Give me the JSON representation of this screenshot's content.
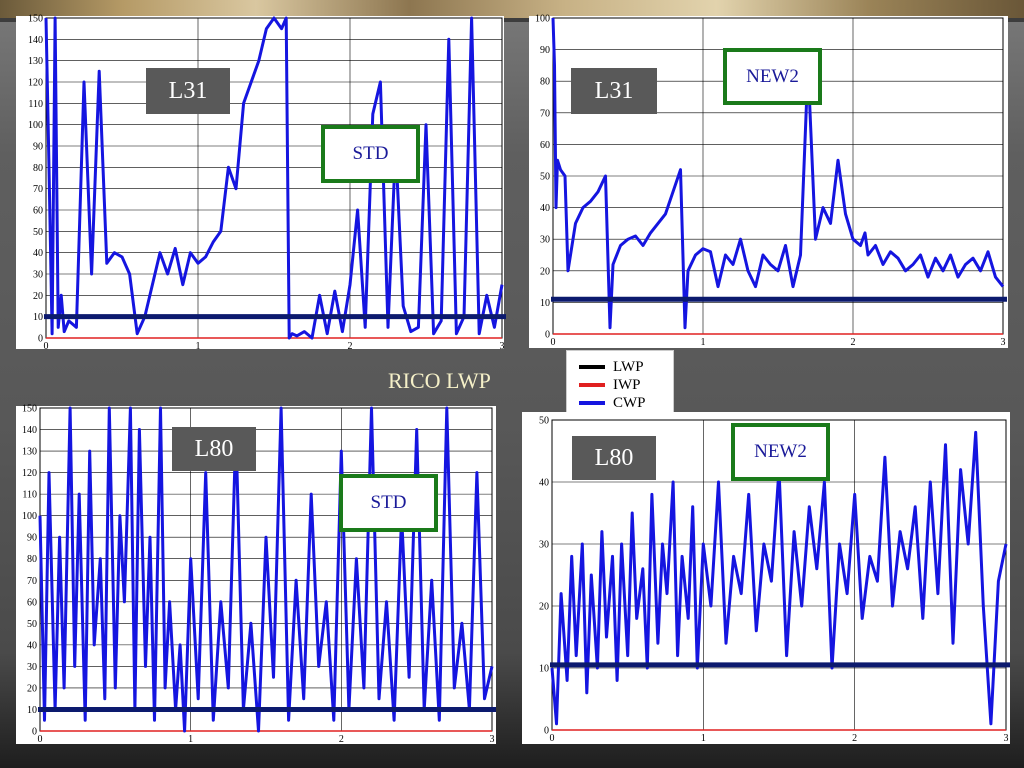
{
  "title": "RICO LWP",
  "legend": [
    {
      "label": "LWP",
      "color": "#000000"
    },
    {
      "label": "IWP",
      "color": "#e02020"
    },
    {
      "label": "CWP",
      "color": "#1515e0"
    }
  ],
  "chart_data": [
    {
      "type": "line",
      "id": "l31-std",
      "tag": "L31",
      "scheme": "STD",
      "xlim": [
        0,
        3
      ],
      "ylim": [
        0,
        150
      ],
      "xticks": [
        0,
        1,
        2,
        3
      ],
      "yticks": [
        0,
        10,
        20,
        30,
        40,
        50,
        60,
        70,
        80,
        90,
        100,
        110,
        120,
        130,
        140,
        150
      ],
      "grid": true,
      "lwp": 10,
      "iwp": 0,
      "series": [
        {
          "name": "CWP",
          "x": [
            0,
            0.02,
            0.04,
            0.06,
            0.08,
            0.1,
            0.12,
            0.15,
            0.2,
            0.25,
            0.3,
            0.35,
            0.4,
            0.45,
            0.5,
            0.55,
            0.6,
            0.65,
            0.7,
            0.75,
            0.8,
            0.85,
            0.9,
            0.95,
            1.0,
            1.05,
            1.1,
            1.15,
            1.2,
            1.25,
            1.3,
            1.35,
            1.4,
            1.45,
            1.5,
            1.55,
            1.58,
            1.6,
            1.62,
            1.65,
            1.7,
            1.75,
            1.8,
            1.85,
            1.9,
            1.95,
            2.0,
            2.05,
            2.1,
            2.15,
            2.2,
            2.25,
            2.3,
            2.35,
            2.4,
            2.45,
            2.5,
            2.55,
            2.6,
            2.65,
            2.7,
            2.75,
            2.8,
            2.85,
            2.9,
            2.95,
            3.0
          ],
          "y": [
            150,
            80,
            2,
            150,
            5,
            20,
            3,
            8,
            5,
            120,
            30,
            125,
            35,
            40,
            38,
            30,
            2,
            10,
            25,
            40,
            30,
            42,
            25,
            40,
            35,
            38,
            45,
            50,
            80,
            70,
            110,
            120,
            130,
            145,
            150,
            145,
            150,
            0,
            2,
            1,
            3,
            0,
            20,
            2,
            22,
            3,
            25,
            60,
            5,
            105,
            120,
            5,
            90,
            15,
            3,
            5,
            100,
            2,
            8,
            140,
            2,
            10,
            150,
            2,
            20,
            5,
            25
          ]
        }
      ]
    },
    {
      "type": "line",
      "id": "l31-new2",
      "tag": "L31",
      "scheme": "NEW2",
      "xlim": [
        0,
        3
      ],
      "ylim": [
        0,
        100
      ],
      "xticks": [
        0,
        1,
        2,
        3
      ],
      "yticks": [
        0,
        10,
        20,
        30,
        40,
        50,
        60,
        70,
        80,
        90,
        100
      ],
      "grid": true,
      "lwp": 11,
      "iwp": 0,
      "series": [
        {
          "name": "CWP",
          "x": [
            0,
            0.01,
            0.02,
            0.03,
            0.05,
            0.08,
            0.1,
            0.15,
            0.2,
            0.25,
            0.3,
            0.35,
            0.38,
            0.4,
            0.45,
            0.5,
            0.55,
            0.6,
            0.65,
            0.7,
            0.75,
            0.8,
            0.85,
            0.88,
            0.9,
            0.95,
            1.0,
            1.05,
            1.1,
            1.15,
            1.2,
            1.25,
            1.3,
            1.35,
            1.4,
            1.45,
            1.5,
            1.55,
            1.6,
            1.65,
            1.7,
            1.75,
            1.8,
            1.85,
            1.9,
            1.95,
            2.0,
            2.05,
            2.08,
            2.1,
            2.15,
            2.2,
            2.25,
            2.3,
            2.35,
            2.4,
            2.45,
            2.5,
            2.55,
            2.6,
            2.65,
            2.7,
            2.75,
            2.8,
            2.85,
            2.9,
            2.95,
            3.0
          ],
          "y": [
            100,
            85,
            40,
            55,
            52,
            50,
            20,
            35,
            40,
            42,
            45,
            50,
            2,
            22,
            28,
            30,
            31,
            28,
            32,
            35,
            38,
            45,
            52,
            2,
            20,
            25,
            27,
            26,
            15,
            25,
            22,
            30,
            20,
            15,
            25,
            22,
            20,
            28,
            15,
            25,
            85,
            30,
            40,
            35,
            55,
            38,
            30,
            28,
            32,
            25,
            28,
            22,
            26,
            24,
            20,
            22,
            25,
            18,
            24,
            20,
            25,
            18,
            22,
            24,
            20,
            26,
            18,
            15
          ]
        }
      ]
    },
    {
      "type": "line",
      "id": "l80-std",
      "tag": "L80",
      "scheme": "STD",
      "xlim": [
        0,
        3
      ],
      "ylim": [
        0,
        150
      ],
      "xticks": [
        0,
        1,
        2,
        3
      ],
      "yticks": [
        0,
        10,
        20,
        30,
        40,
        50,
        60,
        70,
        80,
        90,
        100,
        110,
        120,
        130,
        140,
        150
      ],
      "grid": true,
      "lwp": 10,
      "iwp": 0,
      "series": [
        {
          "name": "CWP",
          "x": [
            0,
            0.03,
            0.06,
            0.1,
            0.13,
            0.16,
            0.2,
            0.23,
            0.26,
            0.3,
            0.33,
            0.36,
            0.4,
            0.43,
            0.46,
            0.5,
            0.53,
            0.56,
            0.6,
            0.63,
            0.66,
            0.7,
            0.73,
            0.76,
            0.8,
            0.83,
            0.86,
            0.9,
            0.93,
            0.96,
            1.0,
            1.05,
            1.1,
            1.15,
            1.2,
            1.25,
            1.3,
            1.35,
            1.4,
            1.45,
            1.5,
            1.55,
            1.6,
            1.65,
            1.7,
            1.75,
            1.8,
            1.85,
            1.9,
            1.95,
            2.0,
            2.05,
            2.1,
            2.15,
            2.2,
            2.25,
            2.3,
            2.35,
            2.4,
            2.45,
            2.5,
            2.55,
            2.6,
            2.65,
            2.7,
            2.75,
            2.8,
            2.85,
            2.9,
            2.95,
            3.0
          ],
          "y": [
            100,
            5,
            120,
            10,
            90,
            20,
            150,
            30,
            110,
            5,
            130,
            40,
            80,
            15,
            150,
            20,
            100,
            60,
            150,
            10,
            140,
            30,
            90,
            5,
            150,
            20,
            60,
            10,
            40,
            0,
            80,
            15,
            120,
            5,
            60,
            20,
            140,
            10,
            50,
            0,
            90,
            25,
            150,
            5,
            70,
            15,
            110,
            30,
            60,
            5,
            130,
            10,
            80,
            20,
            150,
            15,
            60,
            5,
            100,
            25,
            140,
            10,
            70,
            5,
            150,
            20,
            50,
            10,
            120,
            15,
            30
          ]
        }
      ]
    },
    {
      "type": "line",
      "id": "l80-new2",
      "tag": "L80",
      "scheme": "NEW2",
      "xlim": [
        0,
        3
      ],
      "ylim": [
        0,
        50
      ],
      "xticks": [
        0,
        1,
        2,
        3
      ],
      "yticks": [
        0,
        10,
        20,
        30,
        40,
        50
      ],
      "grid": true,
      "lwp": 10.5,
      "iwp": 0,
      "series": [
        {
          "name": "CWP",
          "x": [
            0,
            0.03,
            0.06,
            0.1,
            0.13,
            0.16,
            0.2,
            0.23,
            0.26,
            0.3,
            0.33,
            0.36,
            0.4,
            0.43,
            0.46,
            0.5,
            0.53,
            0.56,
            0.6,
            0.63,
            0.66,
            0.7,
            0.73,
            0.76,
            0.8,
            0.83,
            0.86,
            0.9,
            0.93,
            0.96,
            1.0,
            1.05,
            1.1,
            1.15,
            1.2,
            1.25,
            1.3,
            1.35,
            1.4,
            1.45,
            1.5,
            1.55,
            1.6,
            1.65,
            1.7,
            1.75,
            1.8,
            1.85,
            1.9,
            1.95,
            2.0,
            2.05,
            2.1,
            2.15,
            2.2,
            2.25,
            2.3,
            2.35,
            2.4,
            2.45,
            2.5,
            2.55,
            2.6,
            2.65,
            2.7,
            2.75,
            2.8,
            2.85,
            2.9,
            2.95,
            3.0
          ],
          "y": [
            10,
            1,
            22,
            8,
            28,
            12,
            30,
            6,
            25,
            10,
            32,
            15,
            28,
            8,
            30,
            12,
            35,
            18,
            26,
            10,
            38,
            14,
            30,
            22,
            40,
            12,
            28,
            18,
            36,
            10,
            30,
            20,
            40,
            14,
            28,
            22,
            38,
            16,
            30,
            24,
            42,
            12,
            32,
            20,
            36,
            26,
            40,
            10,
            30,
            22,
            38,
            18,
            28,
            24,
            44,
            20,
            32,
            26,
            36,
            18,
            40,
            22,
            46,
            14,
            42,
            30,
            48,
            20,
            1,
            24,
            30
          ]
        }
      ]
    }
  ]
}
